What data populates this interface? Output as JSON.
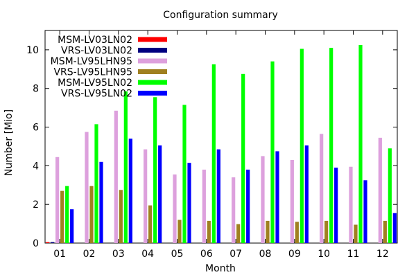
{
  "chart_data": {
    "type": "bar",
    "title": "Configuration summary",
    "xlabel": "Month",
    "ylabel": "Number [Mio]",
    "ylim": [
      0,
      11
    ],
    "y_ticks": [
      0,
      2,
      4,
      6,
      8,
      10
    ],
    "categories": [
      "01",
      "02",
      "03",
      "04",
      "05",
      "06",
      "07",
      "08",
      "09",
      "10",
      "11",
      "12"
    ],
    "legend_position": "top-left",
    "series": [
      {
        "name": "MSM-LV03LN02",
        "color": "#ff0000",
        "values": [
          0.05,
          0,
          0,
          0,
          0,
          0,
          0,
          0,
          0,
          0,
          0,
          0
        ]
      },
      {
        "name": "VRS-LV03LN02",
        "color": "#000080",
        "values": [
          0.05,
          0,
          0,
          0,
          0,
          0,
          0,
          0,
          0,
          0,
          0,
          0
        ]
      },
      {
        "name": "MSM-LV95LHN95",
        "color": "#dda0dd",
        "values": [
          4.45,
          5.75,
          6.85,
          4.85,
          3.55,
          3.8,
          3.4,
          4.5,
          4.3,
          5.65,
          3.95,
          5.45
        ]
      },
      {
        "name": "VRS-LV95LHN95",
        "color": "#a08020",
        "values": [
          2.7,
          2.95,
          2.75,
          1.95,
          1.2,
          1.15,
          0.98,
          1.15,
          1.1,
          1.15,
          0.95,
          1.15
        ]
      },
      {
        "name": "MSM-LV95LN02",
        "color": "#00ff00",
        "values": [
          2.95,
          6.15,
          7.85,
          7.55,
          7.15,
          9.25,
          8.75,
          9.4,
          10.05,
          10.1,
          10.25,
          4.9
        ]
      },
      {
        "name": "VRS-LV95LN02",
        "color": "#0000ff",
        "values": [
          1.75,
          4.2,
          5.4,
          5.05,
          4.15,
          4.85,
          3.8,
          4.75,
          5.05,
          3.9,
          3.25,
          1.55
        ]
      }
    ]
  }
}
